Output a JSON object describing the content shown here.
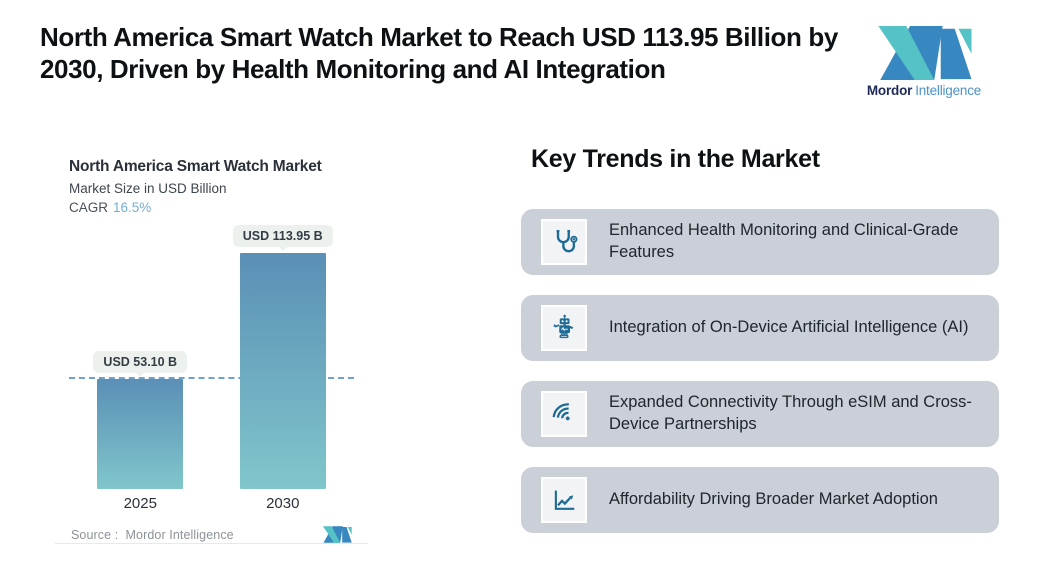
{
  "header": {
    "title": "North America Smart Watch Market to Reach USD 113.95 Billion by 2030, Driven by Health Monitoring and AI Integration"
  },
  "brand": {
    "name_bold": "Mordor",
    "name_light": "Intelligence",
    "colors": {
      "teal": "#55c3c6",
      "blue": "#3787c0",
      "navy": "#1e2b5a",
      "light_blue": "#4b93c9"
    }
  },
  "chart_card": {
    "title": "North America Smart Watch Market",
    "subtitle": "Market Size in USD Billion",
    "cagr_label": "CAGR",
    "cagr_value": "16.5%",
    "source_label": "Source :",
    "source_value": "Mordor Intelligence"
  },
  "chart_data": {
    "type": "bar",
    "title": "North America Smart Watch Market",
    "subtitle": "Market Size in USD Billion",
    "cagr": "16.5%",
    "categories": [
      "2025",
      "2030"
    ],
    "values": [
      53.1,
      113.95
    ],
    "value_labels": [
      "USD 53.10 B",
      "USD 113.95 B"
    ],
    "unit": "USD Billion",
    "ylim": [
      0,
      113.95
    ],
    "grid": false,
    "bar_gradient": [
      "#5b8fb6",
      "#80c6cb"
    ],
    "reference_line": {
      "y": 53.1,
      "style": "dashed",
      "color": "#6fa2ca"
    }
  },
  "trends": {
    "heading": "Key Trends in the Market",
    "card_bg": "#cbcfd7",
    "icon_color": "#1e6b96",
    "items": [
      {
        "icon": "stethoscope-icon",
        "label": "Enhanced Health Monitoring and Clinical-Grade Features"
      },
      {
        "icon": "robot-icon",
        "label": "Integration of On-Device Artificial Intelligence (AI)"
      },
      {
        "icon": "wifi-icon",
        "label": "Expanded Connectivity Through eSIM and Cross-Device Partnerships"
      },
      {
        "icon": "line-chart-icon",
        "label": "Affordability Driving Broader Market Adoption"
      }
    ]
  }
}
